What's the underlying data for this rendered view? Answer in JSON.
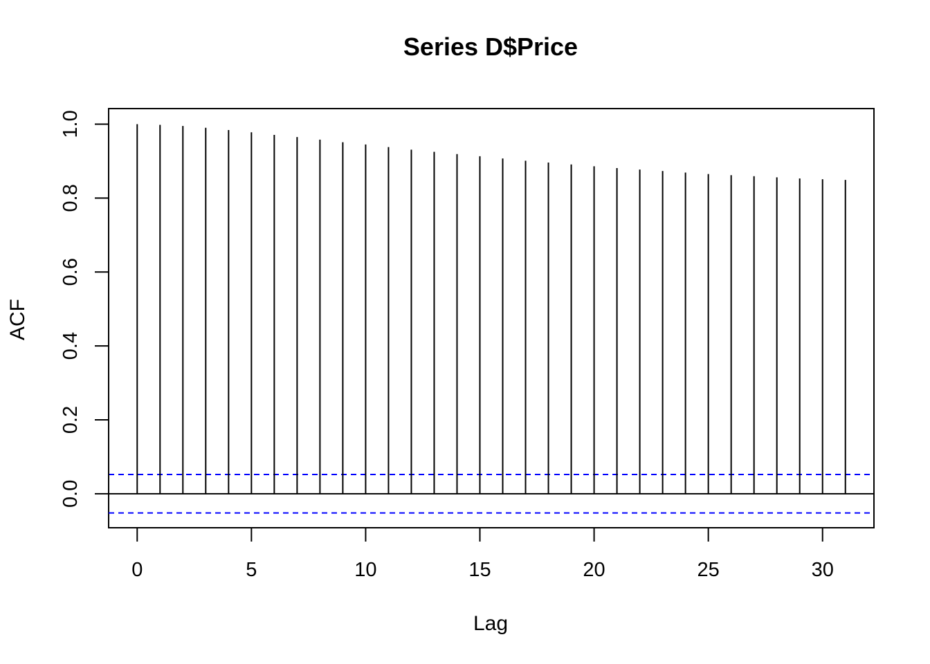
{
  "chart_data": {
    "type": "bar",
    "title": "Series  D$Price",
    "xlabel": "Lag",
    "ylabel": "ACF",
    "xlim": [
      -1.25,
      32.25
    ],
    "ylim": [
      -0.092,
      1.042
    ],
    "x_ticks": [
      0,
      5,
      10,
      15,
      20,
      25,
      30
    ],
    "x_tick_labels": [
      "0",
      "5",
      "10",
      "15",
      "20",
      "25",
      "30"
    ],
    "y_ticks": [
      0.0,
      0.2,
      0.4,
      0.6,
      0.8,
      1.0
    ],
    "y_tick_labels": [
      "0.0",
      "0.2",
      "0.4",
      "0.6",
      "0.8",
      "1.0"
    ],
    "lags": [
      0,
      1,
      2,
      3,
      4,
      5,
      6,
      7,
      8,
      9,
      10,
      11,
      12,
      13,
      14,
      15,
      16,
      17,
      18,
      19,
      20,
      21,
      22,
      23,
      24,
      25,
      26,
      27,
      28,
      29,
      30,
      31
    ],
    "acf": [
      1.0,
      0.998,
      0.995,
      0.99,
      0.984,
      0.978,
      0.971,
      0.965,
      0.958,
      0.951,
      0.945,
      0.938,
      0.931,
      0.925,
      0.919,
      0.913,
      0.907,
      0.901,
      0.896,
      0.891,
      0.886,
      0.881,
      0.877,
      0.873,
      0.869,
      0.865,
      0.862,
      0.859,
      0.856,
      0.853,
      0.851,
      0.849
    ],
    "confidence_bounds": [
      0.052,
      -0.052
    ],
    "grid": false,
    "colors": {
      "bars": "#000000",
      "confidence": "#0000ff",
      "zero_line": "#000000",
      "frame": "#000000"
    }
  }
}
